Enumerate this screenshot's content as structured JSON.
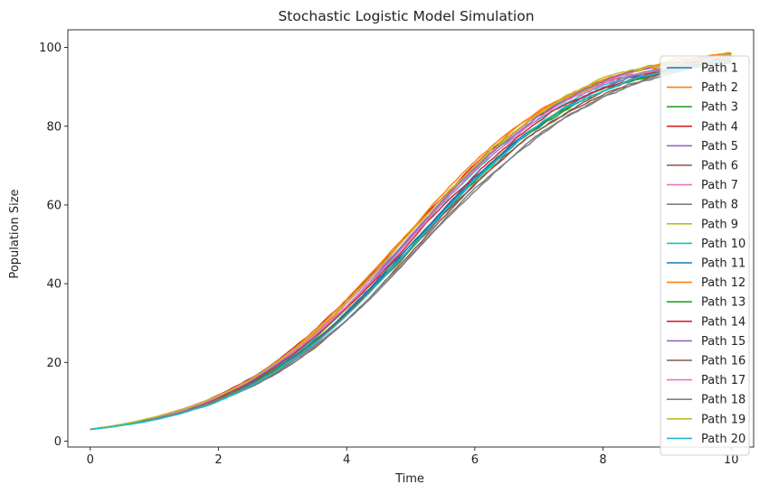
{
  "chart_data": {
    "type": "line",
    "title": "Stochastic Logistic Model Simulation",
    "xlabel": "Time",
    "ylabel": "Population Size",
    "xlim": [
      -0.35,
      10.35
    ],
    "ylim": [
      -1.5,
      104.5
    ],
    "xticks": [
      0,
      2,
      4,
      6,
      8,
      10
    ],
    "yticks": [
      0,
      20,
      40,
      60,
      80,
      100
    ],
    "grid": false,
    "legend_position": "right",
    "curve_model": {
      "K": 100,
      "N0": 3,
      "t_start": 0,
      "t_end": 10,
      "points_per_path": 200
    },
    "series": [
      {
        "name": "Path 1",
        "color": "#1f77b4",
        "r": 0.715,
        "seed": 11
      },
      {
        "name": "Path 2",
        "color": "#ff7f0e",
        "r": 0.735,
        "seed": 23
      },
      {
        "name": "Path 3",
        "color": "#2ca02c",
        "r": 0.705,
        "seed": 37
      },
      {
        "name": "Path 4",
        "color": "#d62728",
        "r": 0.722,
        "seed": 41
      },
      {
        "name": "Path 5",
        "color": "#9467bd",
        "r": 0.718,
        "seed": 53
      },
      {
        "name": "Path 6",
        "color": "#8c564b",
        "r": 0.702,
        "seed": 67
      },
      {
        "name": "Path 7",
        "color": "#e377c2",
        "r": 0.725,
        "seed": 71
      },
      {
        "name": "Path 8",
        "color": "#7f7f7f",
        "r": 0.675,
        "seed": 83
      },
      {
        "name": "Path 9",
        "color": "#bcbd22",
        "r": 0.74,
        "seed": 97
      },
      {
        "name": "Path 10",
        "color": "#17becf",
        "r": 0.72,
        "seed": 101
      },
      {
        "name": "Path 11",
        "color": "#1f77b4",
        "r": 0.71,
        "seed": 113
      },
      {
        "name": "Path 12",
        "color": "#ff7f0e",
        "r": 0.745,
        "seed": 127
      },
      {
        "name": "Path 13",
        "color": "#2ca02c",
        "r": 0.7,
        "seed": 131
      },
      {
        "name": "Path 14",
        "color": "#d62728",
        "r": 0.716,
        "seed": 149
      },
      {
        "name": "Path 15",
        "color": "#9467bd",
        "r": 0.712,
        "seed": 151
      },
      {
        "name": "Path 16",
        "color": "#8c564b",
        "r": 0.7,
        "seed": 163
      },
      {
        "name": "Path 17",
        "color": "#e377c2",
        "r": 0.72,
        "seed": 173
      },
      {
        "name": "Path 18",
        "color": "#7f7f7f",
        "r": 0.68,
        "seed": 181
      },
      {
        "name": "Path 19",
        "color": "#bcbd22",
        "r": 0.738,
        "seed": 191
      },
      {
        "name": "Path 20",
        "color": "#17becf",
        "r": 0.716,
        "seed": 199
      }
    ]
  }
}
